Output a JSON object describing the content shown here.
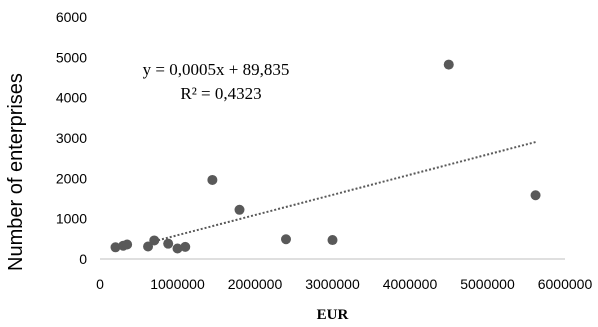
{
  "chart_data": {
    "type": "scatter",
    "title": "",
    "xlabel": "EUR",
    "ylabel": "Number of enterprises",
    "xlim": [
      0,
      6000000
    ],
    "ylim": [
      0,
      6000
    ],
    "xticks": [
      0,
      1000000,
      2000000,
      3000000,
      4000000,
      5000000,
      6000000
    ],
    "xtick_labels": [
      "0",
      "1000000",
      "2000000",
      "3000000",
      "4000000",
      "5000000",
      "6000000"
    ],
    "yticks": [
      0,
      1000,
      2000,
      3000,
      4000,
      5000,
      6000
    ],
    "ytick_labels": [
      "0",
      "1000",
      "2000",
      "3000",
      "4000",
      "5000",
      "6000"
    ],
    "grid": false,
    "point_color": "#595959",
    "trendline_color": "#595959",
    "series": [
      {
        "points": [
          {
            "x": 200000,
            "y": 290
          },
          {
            "x": 300000,
            "y": 330
          },
          {
            "x": 350000,
            "y": 360
          },
          {
            "x": 620000,
            "y": 310
          },
          {
            "x": 700000,
            "y": 460
          },
          {
            "x": 880000,
            "y": 380
          },
          {
            "x": 1000000,
            "y": 260
          },
          {
            "x": 1100000,
            "y": 300
          },
          {
            "x": 1450000,
            "y": 1960
          },
          {
            "x": 1800000,
            "y": 1220
          },
          {
            "x": 2400000,
            "y": 490
          },
          {
            "x": 3000000,
            "y": 470
          },
          {
            "x": 4500000,
            "y": 4820
          },
          {
            "x": 5620000,
            "y": 1580
          }
        ]
      }
    ],
    "trendline": {
      "type": "linear",
      "slope": 0.0005,
      "intercept": 89.835,
      "x_start": 600000,
      "x_end": 5620000,
      "equation": "y = 0,0005x + 89,835",
      "r_squared": "R² = 0,4323"
    }
  }
}
